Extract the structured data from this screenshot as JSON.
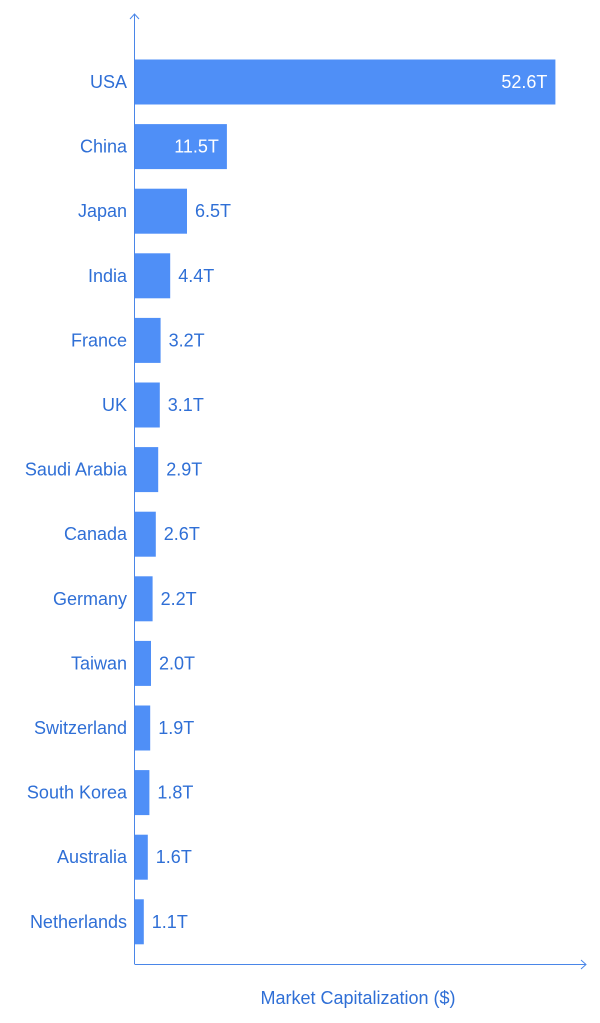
{
  "chart_data": {
    "type": "bar",
    "orientation": "horizontal",
    "title": "",
    "xlabel": "Market Capitalization ($)",
    "ylabel": "",
    "grid": false,
    "xlim": [
      0,
      55.3
    ],
    "categories": [
      "USA",
      "China",
      "Japan",
      "India",
      "France",
      "UK",
      "Saudi Arabia",
      "Canada",
      "Germany",
      "Taiwan",
      "Switzerland",
      "South Korea",
      "Australia",
      "Netherlands"
    ],
    "values": [
      52.6,
      11.5,
      6.5,
      4.4,
      3.2,
      3.1,
      2.9,
      2.6,
      2.2,
      2.0,
      1.9,
      1.8,
      1.6,
      1.1
    ],
    "value_labels": [
      "52.6T",
      "11.5T",
      "6.5T",
      "4.4T",
      "3.2T",
      "3.1T",
      "2.9T",
      "2.6T",
      "2.2T",
      "2.0T",
      "1.9T",
      "1.8T",
      "1.6T",
      "1.1T"
    ],
    "unit": "T"
  },
  "colors": {
    "bar": "#4f8ff7",
    "axis": "#4a86e8",
    "label": "#2f6fd6",
    "inside_label": "#ffffff"
  }
}
